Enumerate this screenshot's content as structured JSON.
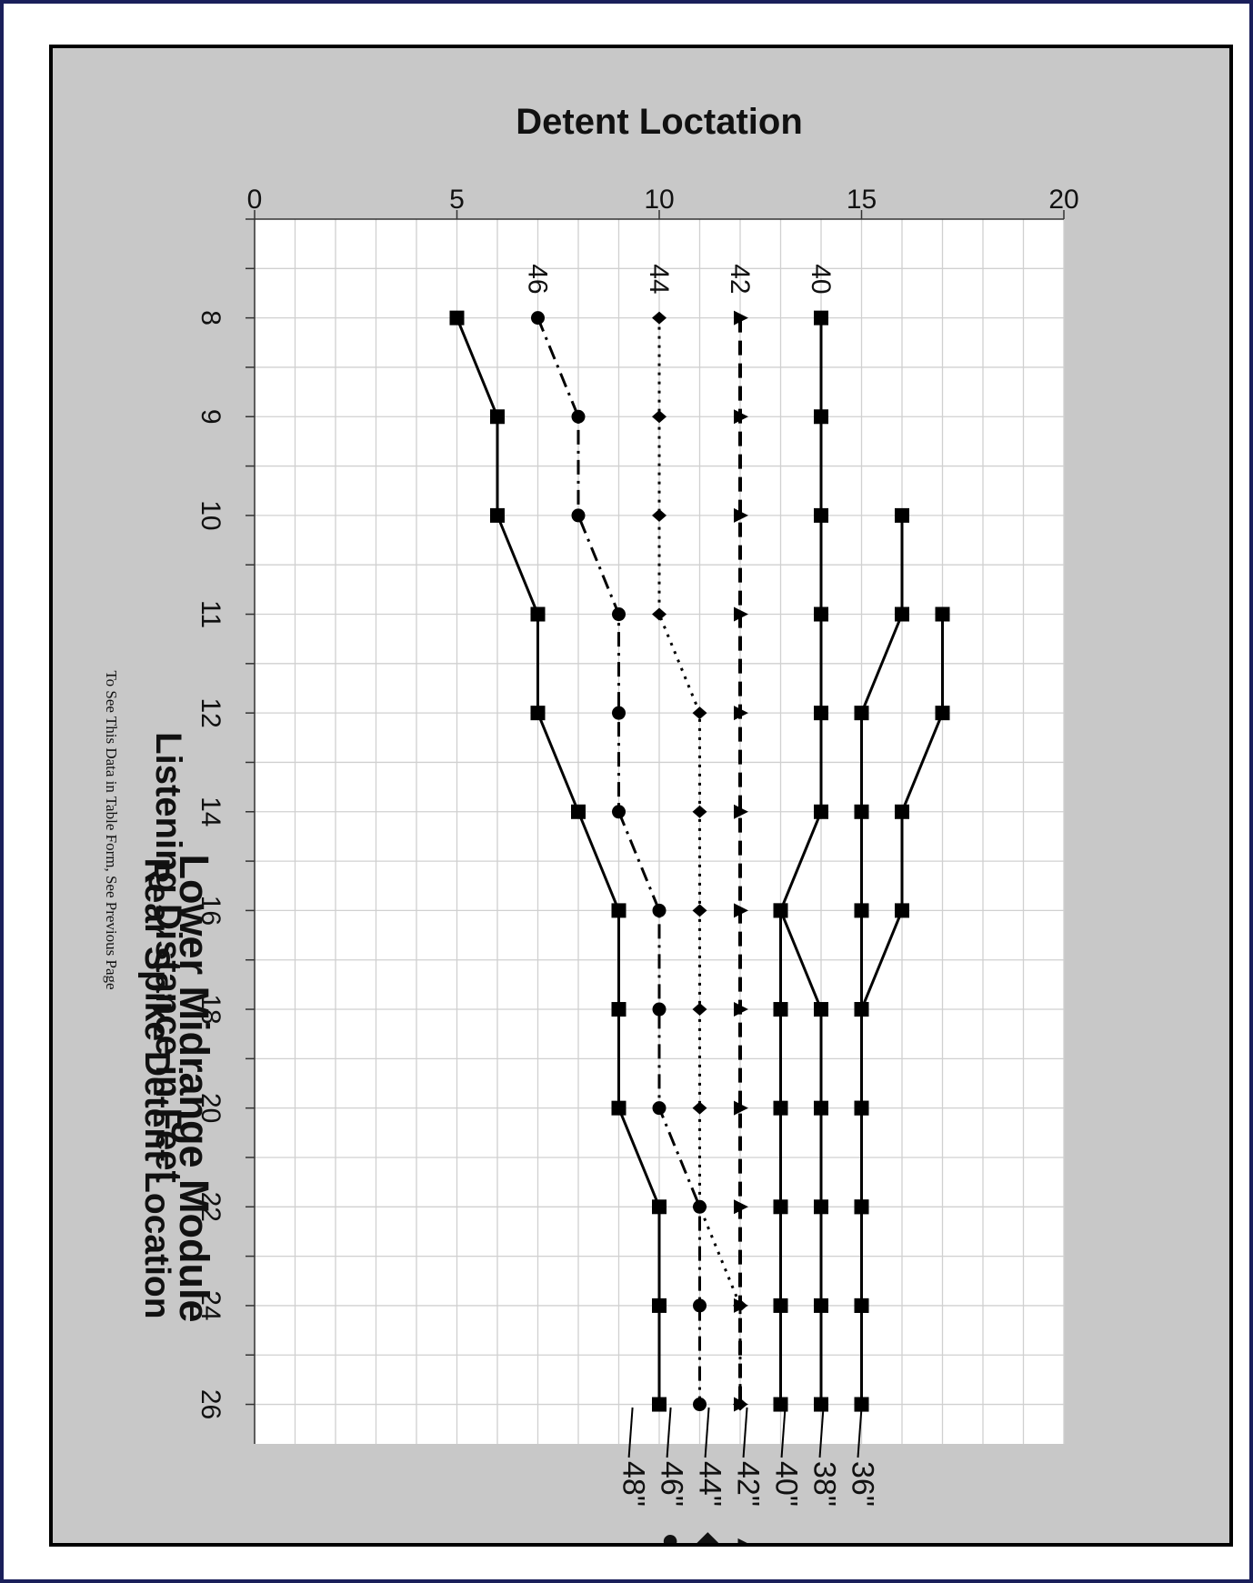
{
  "chart_data": {
    "type": "line",
    "title": "Lower Midrange Module",
    "subtitle": "Rear Spike Detent Location",
    "xlabel": "Listening Distance in Feet",
    "ylabel": "Detent Loctation",
    "note": "To See This Data in Table Form, See Previous Page",
    "categories": [
      "8",
      "9",
      "10",
      "11",
      "12",
      "14",
      "16",
      "18",
      "20",
      "22",
      "24",
      "26"
    ],
    "ylim": [
      0,
      20
    ],
    "yticks": [
      "0",
      "5",
      "10",
      "15",
      "20"
    ],
    "grid": true,
    "series": [
      {
        "name": "36\"",
        "marker": "square",
        "dash": "solid",
        "values": [
          null,
          null,
          16,
          16,
          15,
          15,
          15,
          15,
          15,
          15,
          15,
          15
        ]
      },
      {
        "name": "36\"",
        "marker": "square",
        "dash": "solid",
        "values": [
          null,
          null,
          null,
          17,
          17,
          16,
          16,
          15,
          15,
          15,
          15,
          15
        ]
      },
      {
        "name": "38\"",
        "marker": "square",
        "dash": "solid",
        "values": [
          14,
          14,
          14,
          14,
          14,
          14,
          13,
          14,
          14,
          14,
          14,
          14
        ]
      },
      {
        "name": "40\"",
        "marker": "square",
        "dash": "solid",
        "values": [
          null,
          null,
          null,
          null,
          null,
          null,
          13,
          13,
          13,
          13,
          13,
          13
        ]
      },
      {
        "name": "42\"",
        "marker": "triangle",
        "dash": "dashed",
        "values": [
          12,
          12,
          12,
          12,
          12,
          12,
          12,
          12,
          12,
          12,
          12,
          12
        ]
      },
      {
        "name": "44\"",
        "marker": "diamond",
        "dash": "dotted",
        "values": [
          10,
          10,
          10,
          10,
          11,
          11,
          11,
          11,
          11,
          11,
          12,
          12
        ]
      },
      {
        "name": "46\"",
        "marker": "circle",
        "dash": "dashdot",
        "values": [
          7,
          8,
          8,
          9,
          9,
          9,
          10,
          10,
          10,
          11,
          11,
          11
        ]
      },
      {
        "name": "48\"",
        "marker": "square",
        "dash": "solid",
        "values": [
          5,
          6,
          6,
          7,
          7,
          8,
          9,
          9,
          9,
          10,
          10,
          10
        ]
      }
    ],
    "start_labels": [
      "40",
      "42",
      "44",
      "46"
    ],
    "legend": {
      "position": "right",
      "entries": [
        {
          "label": "36\"",
          "marker": ""
        },
        {
          "label": "38\"",
          "marker": ""
        },
        {
          "label": "40\"",
          "marker": ""
        },
        {
          "label": "42\"",
          "marker": "▲"
        },
        {
          "label": "44\"",
          "marker": "◆"
        },
        {
          "label": "46\"",
          "marker": "●"
        },
        {
          "label": "48\"",
          "marker": ""
        }
      ]
    }
  }
}
